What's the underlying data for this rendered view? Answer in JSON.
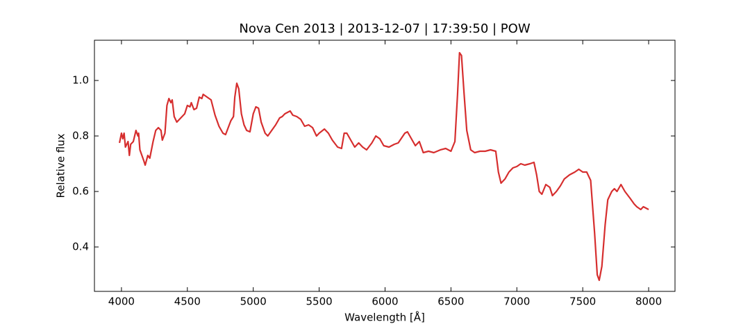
{
  "chart_data": {
    "type": "line",
    "title": "Nova Cen 2013 | 2013-12-07 | 17:39:50 | POW",
    "xlabel": "Wavelength [Å]",
    "ylabel": "Relative flux",
    "color": "#d62e2e",
    "xlim": [
      3795,
      8200
    ],
    "ylim": [
      0.24,
      1.145
    ],
    "xticks": [
      4000,
      4500,
      5000,
      5500,
      6000,
      6500,
      7000,
      7500,
      8000
    ],
    "yticks": [
      0.4,
      0.6,
      0.8,
      {
        "value": 1,
        "label": "1.0"
      }
    ],
    "x": [
      3985,
      4000,
      4010,
      4020,
      4030,
      4050,
      4060,
      4070,
      4090,
      4110,
      4125,
      4130,
      4140,
      4170,
      4180,
      4200,
      4215,
      4240,
      4260,
      4280,
      4300,
      4310,
      4330,
      4345,
      4360,
      4375,
      4385,
      4400,
      4420,
      4450,
      4480,
      4500,
      4520,
      4530,
      4550,
      4570,
      4590,
      4610,
      4620,
      4650,
      4680,
      4710,
      4740,
      4770,
      4790,
      4810,
      4830,
      4850,
      4860,
      4875,
      4890,
      4910,
      4930,
      4950,
      4975,
      5000,
      5020,
      5040,
      5060,
      5090,
      5110,
      5140,
      5170,
      5200,
      5220,
      5240,
      5260,
      5280,
      5300,
      5330,
      5360,
      5390,
      5420,
      5450,
      5480,
      5500,
      5540,
      5570,
      5600,
      5640,
      5670,
      5690,
      5710,
      5740,
      5770,
      5800,
      5830,
      5860,
      5900,
      5930,
      5960,
      5990,
      6030,
      6070,
      6100,
      6150,
      6170,
      6200,
      6230,
      6260,
      6290,
      6330,
      6370,
      6420,
      6460,
      6500,
      6530,
      6550,
      6565,
      6580,
      6600,
      6620,
      6650,
      6680,
      6720,
      6760,
      6800,
      6840,
      6860,
      6880,
      6910,
      6940,
      6970,
      7000,
      7030,
      7060,
      7100,
      7130,
      7150,
      7170,
      7190,
      7220,
      7250,
      7270,
      7300,
      7330,
      7360,
      7400,
      7440,
      7470,
      7500,
      7530,
      7560,
      7590,
      7610,
      7625,
      7645,
      7670,
      7690,
      7720,
      7740,
      7760,
      7790,
      7820,
      7860,
      7890,
      7910,
      7940,
      7960,
      8000
    ],
    "values": [
      0.775,
      0.81,
      0.79,
      0.81,
      0.76,
      0.78,
      0.73,
      0.77,
      0.78,
      0.82,
      0.8,
      0.81,
      0.75,
      0.71,
      0.695,
      0.73,
      0.72,
      0.78,
      0.82,
      0.83,
      0.82,
      0.785,
      0.81,
      0.91,
      0.935,
      0.92,
      0.93,
      0.87,
      0.85,
      0.865,
      0.88,
      0.91,
      0.905,
      0.92,
      0.895,
      0.9,
      0.94,
      0.935,
      0.95,
      0.94,
      0.93,
      0.875,
      0.835,
      0.81,
      0.805,
      0.83,
      0.855,
      0.87,
      0.94,
      0.99,
      0.97,
      0.88,
      0.84,
      0.82,
      0.815,
      0.88,
      0.905,
      0.9,
      0.85,
      0.81,
      0.8,
      0.82,
      0.84,
      0.865,
      0.87,
      0.88,
      0.885,
      0.89,
      0.875,
      0.87,
      0.86,
      0.835,
      0.84,
      0.83,
      0.8,
      0.81,
      0.825,
      0.81,
      0.785,
      0.76,
      0.755,
      0.81,
      0.81,
      0.785,
      0.76,
      0.775,
      0.76,
      0.75,
      0.775,
      0.8,
      0.79,
      0.765,
      0.76,
      0.77,
      0.775,
      0.81,
      0.815,
      0.79,
      0.765,
      0.78,
      0.74,
      0.745,
      0.74,
      0.75,
      0.755,
      0.745,
      0.78,
      0.95,
      1.1,
      1.09,
      0.95,
      0.82,
      0.75,
      0.74,
      0.745,
      0.745,
      0.75,
      0.745,
      0.67,
      0.63,
      0.645,
      0.67,
      0.685,
      0.69,
      0.7,
      0.695,
      0.7,
      0.705,
      0.66,
      0.6,
      0.59,
      0.625,
      0.615,
      0.585,
      0.6,
      0.62,
      0.645,
      0.66,
      0.67,
      0.68,
      0.67,
      0.67,
      0.64,
      0.45,
      0.3,
      0.28,
      0.33,
      0.48,
      0.57,
      0.6,
      0.61,
      0.6,
      0.625,
      0.6,
      0.575,
      0.555,
      0.545,
      0.535,
      0.545,
      0.535
    ]
  }
}
